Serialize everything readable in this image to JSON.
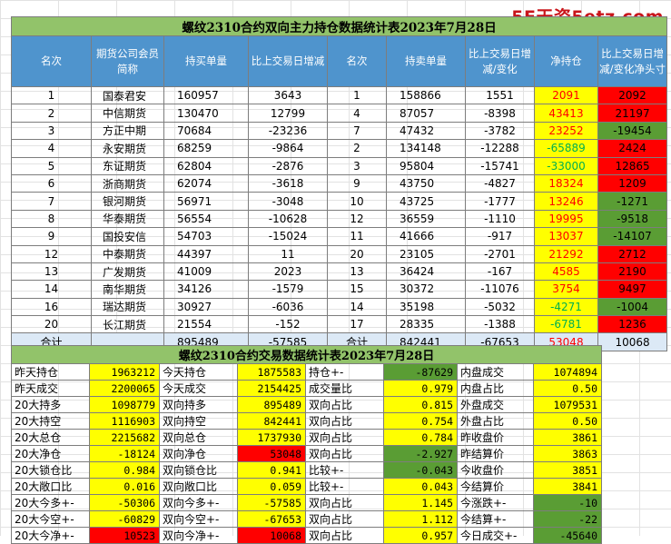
{
  "watermark": "5E天资5etz.com",
  "top_table": {
    "title": "螺纹2310合约双向主力持仓数据统计表2023年7月28日",
    "headers": [
      "名次",
      "期货公司会员简称",
      "持买单量",
      "比上交易日增减",
      "名次",
      "持卖单量",
      "比上交易日增减/变化",
      "净持仓",
      "比上交易日增减/变化净头寸"
    ],
    "rows": [
      {
        "rank": "1",
        "name": "国泰君安",
        "buy": "160957",
        "buy_chg": "3643",
        "rank2": "1",
        "sell": "158866",
        "sell_chg": "1551",
        "net": "2091",
        "net_chg": "2092"
      },
      {
        "rank": "2",
        "name": "中信期货",
        "buy": "130470",
        "buy_chg": "12799",
        "rank2": "4",
        "sell": "87057",
        "sell_chg": "-8398",
        "net": "43413",
        "net_chg": "21197"
      },
      {
        "rank": "3",
        "name": "方正中期",
        "buy": "70684",
        "buy_chg": "-23236",
        "rank2": "7",
        "sell": "47432",
        "sell_chg": "-3782",
        "net": "23252",
        "net_chg": "-19454"
      },
      {
        "rank": "4",
        "name": "永安期货",
        "buy": "68259",
        "buy_chg": "-9864",
        "rank2": "2",
        "sell": "134148",
        "sell_chg": "-12288",
        "net": "-65889",
        "net_chg": "2424"
      },
      {
        "rank": "5",
        "name": "东证期货",
        "buy": "62804",
        "buy_chg": "-2876",
        "rank2": "3",
        "sell": "95804",
        "sell_chg": "-15741",
        "net": "-33000",
        "net_chg": "12865"
      },
      {
        "rank": "6",
        "name": "浙商期货",
        "buy": "62074",
        "buy_chg": "-3618",
        "rank2": "9",
        "sell": "43750",
        "sell_chg": "-4827",
        "net": "18324",
        "net_chg": "1209"
      },
      {
        "rank": "7",
        "name": "银河期货",
        "buy": "56971",
        "buy_chg": "-3048",
        "rank2": "10",
        "sell": "43725",
        "sell_chg": "-1777",
        "net": "13246",
        "net_chg": "-1271"
      },
      {
        "rank": "8",
        "name": "华泰期货",
        "buy": "56554",
        "buy_chg": "-10628",
        "rank2": "12",
        "sell": "36559",
        "sell_chg": "-1110",
        "net": "19995",
        "net_chg": "-9518"
      },
      {
        "rank": "9",
        "name": "国投安信",
        "buy": "54703",
        "buy_chg": "-15024",
        "rank2": "11",
        "sell": "41666",
        "sell_chg": "-917",
        "net": "13037",
        "net_chg": "-14107"
      },
      {
        "rank": "12",
        "name": "中泰期货",
        "buy": "44397",
        "buy_chg": "11",
        "rank2": "20",
        "sell": "23105",
        "sell_chg": "-2701",
        "net": "21292",
        "net_chg": "2712"
      },
      {
        "rank": "13",
        "name": "广发期货",
        "buy": "41009",
        "buy_chg": "2023",
        "rank2": "13",
        "sell": "36424",
        "sell_chg": "-167",
        "net": "4585",
        "net_chg": "2190"
      },
      {
        "rank": "14",
        "name": "南华期货",
        "buy": "34126",
        "buy_chg": "-1579",
        "rank2": "15",
        "sell": "30372",
        "sell_chg": "-11076",
        "net": "3754",
        "net_chg": "9497"
      },
      {
        "rank": "16",
        "name": "瑞达期货",
        "buy": "30927",
        "buy_chg": "-6036",
        "rank2": "14",
        "sell": "35198",
        "sell_chg": "-5032",
        "net": "-4271",
        "net_chg": "-1004"
      },
      {
        "rank": "20",
        "name": "长江期货",
        "buy": "21554",
        "buy_chg": "-152",
        "rank2": "17",
        "sell": "28335",
        "sell_chg": "-1388",
        "net": "-6781",
        "net_chg": "1236"
      }
    ],
    "total": {
      "label": "合计",
      "buy": "895489",
      "buy_chg": "-57585",
      "label2": "合计",
      "sell": "842441",
      "sell_chg": "-67653",
      "net": "53048",
      "net_chg": "10068"
    }
  },
  "bottom_table": {
    "title": "螺纹2310合约交易数据统计表2023年7月28日",
    "rows": [
      [
        "昨天持仓",
        "1963212",
        "今天持仓",
        "1875583",
        "持仓+-",
        "-87629",
        "内盘成交",
        "1074894"
      ],
      [
        "昨天成交",
        "2200065",
        "今天成交",
        "2154425",
        "成交量比",
        "0.979",
        "内盘占比",
        "0.50"
      ],
      [
        "20大持多",
        "1098779",
        "双向持多",
        "895489",
        "双向占比",
        "0.815",
        "外盘成交",
        "1079531"
      ],
      [
        "20大持空",
        "1116903",
        "双向持空",
        "842441",
        "双向占比",
        "0.754",
        "外盘占比",
        "0.50"
      ],
      [
        "20大总仓",
        "2215682",
        "双向总仓",
        "1737930",
        "双向占比",
        "0.784",
        "昨收盘价",
        "3861"
      ],
      [
        "20大净仓",
        "-18124",
        "双向净仓",
        "53048",
        "双向占比",
        "-2.927",
        "昨结算价",
        "3863"
      ],
      [
        "20大锁仓比",
        "0.984",
        "双向锁仓比",
        "0.941",
        "比较+-",
        "-0.043",
        "今收盘价",
        "3851"
      ],
      [
        "20大敞口比",
        "0.016",
        "双向敞口比",
        "0.059",
        "比较+-",
        "0.043",
        "今结算价",
        "3841"
      ],
      [
        "20大今多+-",
        "-50306",
        "双向今多+-",
        "-57585",
        "双向占比",
        "1.145",
        "今涨跌+-",
        "-10"
      ],
      [
        "20大今空+-",
        "-60829",
        "双向今空+-",
        "-67653",
        "双向占比",
        "1.112",
        "今结算+-",
        "-22"
      ],
      [
        "20大今净+-",
        "10523",
        "双向今净+-",
        "10068",
        "双向占比",
        "0.957",
        "今日成交+-",
        "-45640"
      ]
    ]
  },
  "colors": {
    "title_green": "#92c36a",
    "header_blue": "#4f94cd",
    "highlight_yellow": "#ffff00",
    "highlight_red": "#ff0000",
    "highlight_green": "#5a9d34",
    "total_row": "#dce9f6"
  }
}
